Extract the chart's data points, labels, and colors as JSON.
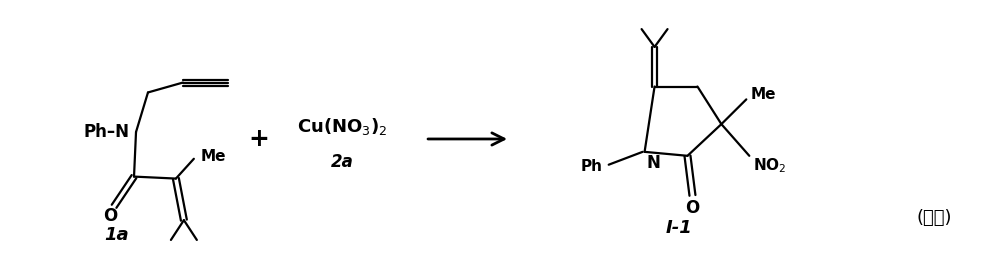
{
  "background_color": "#ffffff",
  "figure_width": 10.0,
  "figure_height": 2.74,
  "dpi": 100,
  "label_1a": "1a",
  "label_2a": "2a",
  "label_I1": "I-1",
  "label_formula": "(式二)",
  "reagent_line1": "Cu(NO$_3$)$_2$",
  "plus_sign": "+",
  "ph_n": "Ph–N",
  "me_text": "Me",
  "o_text": "O",
  "product_ph": "Ph",
  "product_me": "Me",
  "product_o": "O",
  "product_no2": "NO$_2$",
  "product_n": "N",
  "font_bold": "bold",
  "lw": 1.6
}
